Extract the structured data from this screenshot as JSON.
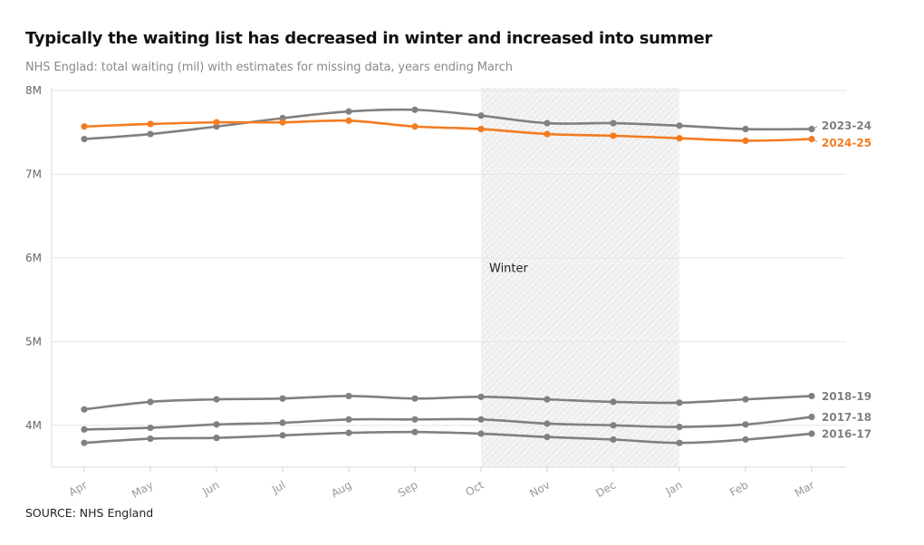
{
  "title": "Typically the waiting list has decreased in winter and increased into summer",
  "subtitle": "NHS Englad: total waiting (mil) with estimates for missing data, years ending March",
  "source": "SOURCE: NHS England",
  "colors": {
    "highlight": "#f47c20",
    "default": "#808080",
    "grid": "#e6e6e6",
    "band": "#cccccc"
  },
  "chart_data": {
    "type": "line",
    "title": "Typically the waiting list has decreased in winter and increased into summer",
    "xlabel": "",
    "ylabel": "",
    "categories": [
      "Apr",
      "May",
      "Jun",
      "Jul",
      "Aug",
      "Sep",
      "Oct",
      "Nov",
      "Dec",
      "Jan",
      "Feb",
      "Mar"
    ],
    "ylim": [
      3.5,
      8.0
    ],
    "yticks": [
      4,
      5,
      6,
      7,
      8
    ],
    "ytick_labels": [
      "4M",
      "5M",
      "6M",
      "7M",
      "8M"
    ],
    "grid": true,
    "band": {
      "label": "Winter",
      "from": "Oct",
      "to": "Jan"
    },
    "series": [
      {
        "name": "2023-24",
        "color": "#808080",
        "values": [
          7.42,
          7.48,
          7.57,
          7.67,
          7.75,
          7.77,
          7.7,
          7.61,
          7.61,
          7.58,
          7.54,
          7.54
        ]
      },
      {
        "name": "2024-25",
        "color": "#f47c20",
        "values": [
          7.57,
          7.6,
          7.62,
          7.62,
          7.64,
          7.57,
          7.54,
          7.48,
          7.46,
          7.43,
          7.4,
          7.42
        ]
      },
      {
        "name": "2018-19",
        "color": "#808080",
        "values": [
          4.19,
          4.28,
          4.31,
          4.32,
          4.35,
          4.32,
          4.34,
          4.31,
          4.28,
          4.27,
          4.31,
          4.35
        ]
      },
      {
        "name": "2017-18",
        "color": "#808080",
        "values": [
          3.95,
          3.97,
          4.01,
          4.03,
          4.07,
          4.07,
          4.07,
          4.02,
          4.0,
          3.98,
          4.01,
          4.1
        ]
      },
      {
        "name": "2016-17",
        "color": "#808080",
        "values": [
          3.79,
          3.84,
          3.85,
          3.88,
          3.91,
          3.92,
          3.9,
          3.86,
          3.83,
          3.79,
          3.83,
          3.9
        ]
      }
    ]
  }
}
